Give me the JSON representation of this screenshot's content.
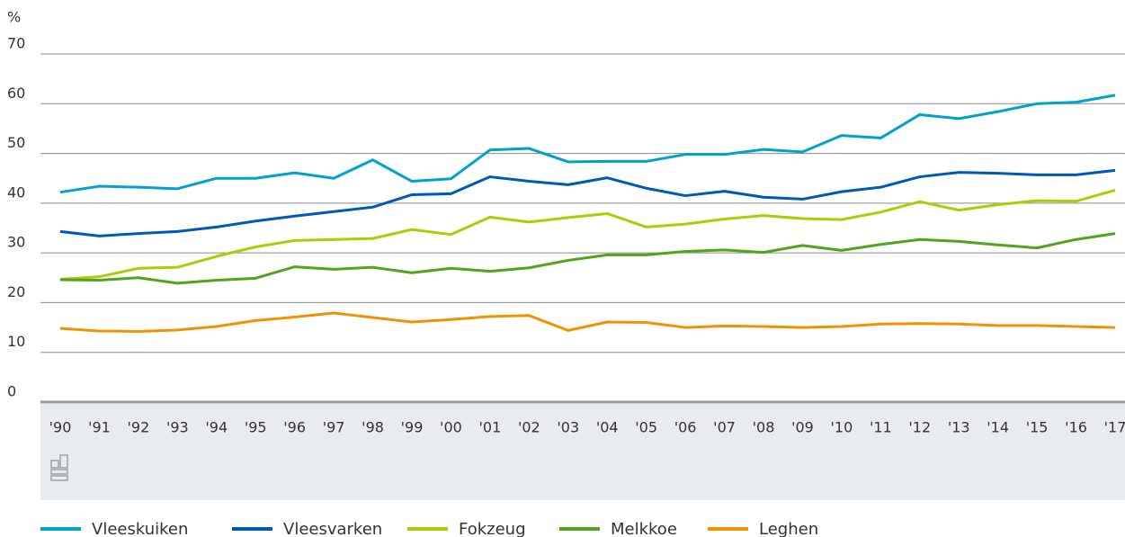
{
  "chart_data": {
    "type": "line",
    "y_label": "%",
    "categories": [
      "'90",
      "'91",
      "'92",
      "'93",
      "'94",
      "'95",
      "'96",
      "'97",
      "'98",
      "'99",
      "'00",
      "'01",
      "'02",
      "'03",
      "'04",
      "'05",
      "'06",
      "'07",
      "'08",
      "'09",
      "'10",
      "'11",
      "'12",
      "'13",
      "'14",
      "'15",
      "'16",
      "'17"
    ],
    "ylim": [
      0,
      70
    ],
    "yticks": [
      0,
      10,
      20,
      30,
      40,
      50,
      60,
      70
    ],
    "grid": true,
    "legend": "bottom",
    "series": [
      {
        "name": "Vleeskuiken",
        "color": "#00a1cd",
        "values": [
          42.2,
          43.4,
          43.2,
          42.9,
          45.0,
          45.0,
          46.1,
          45.0,
          48.7,
          44.4,
          44.9,
          50.7,
          51.0,
          48.3,
          48.4,
          48.4,
          49.8,
          49.8,
          50.8,
          50.3,
          53.6,
          53.1,
          57.8,
          57.0,
          58.4,
          60.0,
          60.3,
          61.7
        ]
      },
      {
        "name": "Vleesvarken",
        "color": "#0058b8",
        "values": [
          34.3,
          33.4,
          33.9,
          34.3,
          35.2,
          36.4,
          37.4,
          38.3,
          39.2,
          41.7,
          41.9,
          45.3,
          44.4,
          43.7,
          45.1,
          43.0,
          41.5,
          42.4,
          41.2,
          40.8,
          42.3,
          43.2,
          45.3,
          46.2,
          46.0,
          45.7,
          45.7,
          46.6
        ]
      },
      {
        "name": "Fokzeug",
        "color": "#afcb05",
        "values": [
          24.7,
          25.2,
          26.9,
          27.1,
          29.3,
          31.2,
          32.5,
          32.7,
          32.9,
          34.7,
          33.7,
          37.2,
          36.2,
          37.1,
          37.9,
          35.2,
          35.8,
          36.8,
          37.5,
          36.9,
          36.7,
          38.2,
          40.3,
          38.6,
          39.7,
          40.5,
          40.4,
          42.6
        ]
      },
      {
        "name": "Melkkoe",
        "color": "#53a31d",
        "values": [
          24.6,
          24.5,
          25.0,
          23.9,
          24.5,
          24.9,
          27.2,
          26.7,
          27.1,
          26.0,
          26.9,
          26.3,
          27.0,
          28.5,
          29.6,
          29.6,
          30.3,
          30.6,
          30.1,
          31.5,
          30.5,
          31.7,
          32.7,
          32.3,
          31.6,
          31.0,
          32.7,
          33.9
        ]
      },
      {
        "name": "Leghen",
        "color": "#f39200",
        "values": [
          14.8,
          14.3,
          14.2,
          14.5,
          15.2,
          16.4,
          17.1,
          17.9,
          17.0,
          16.1,
          16.6,
          17.2,
          17.4,
          14.4,
          16.1,
          16.0,
          15.0,
          15.3,
          15.2,
          15.0,
          15.2,
          15.7,
          15.8,
          15.7,
          15.4,
          15.4,
          15.2,
          15.0
        ]
      }
    ]
  }
}
